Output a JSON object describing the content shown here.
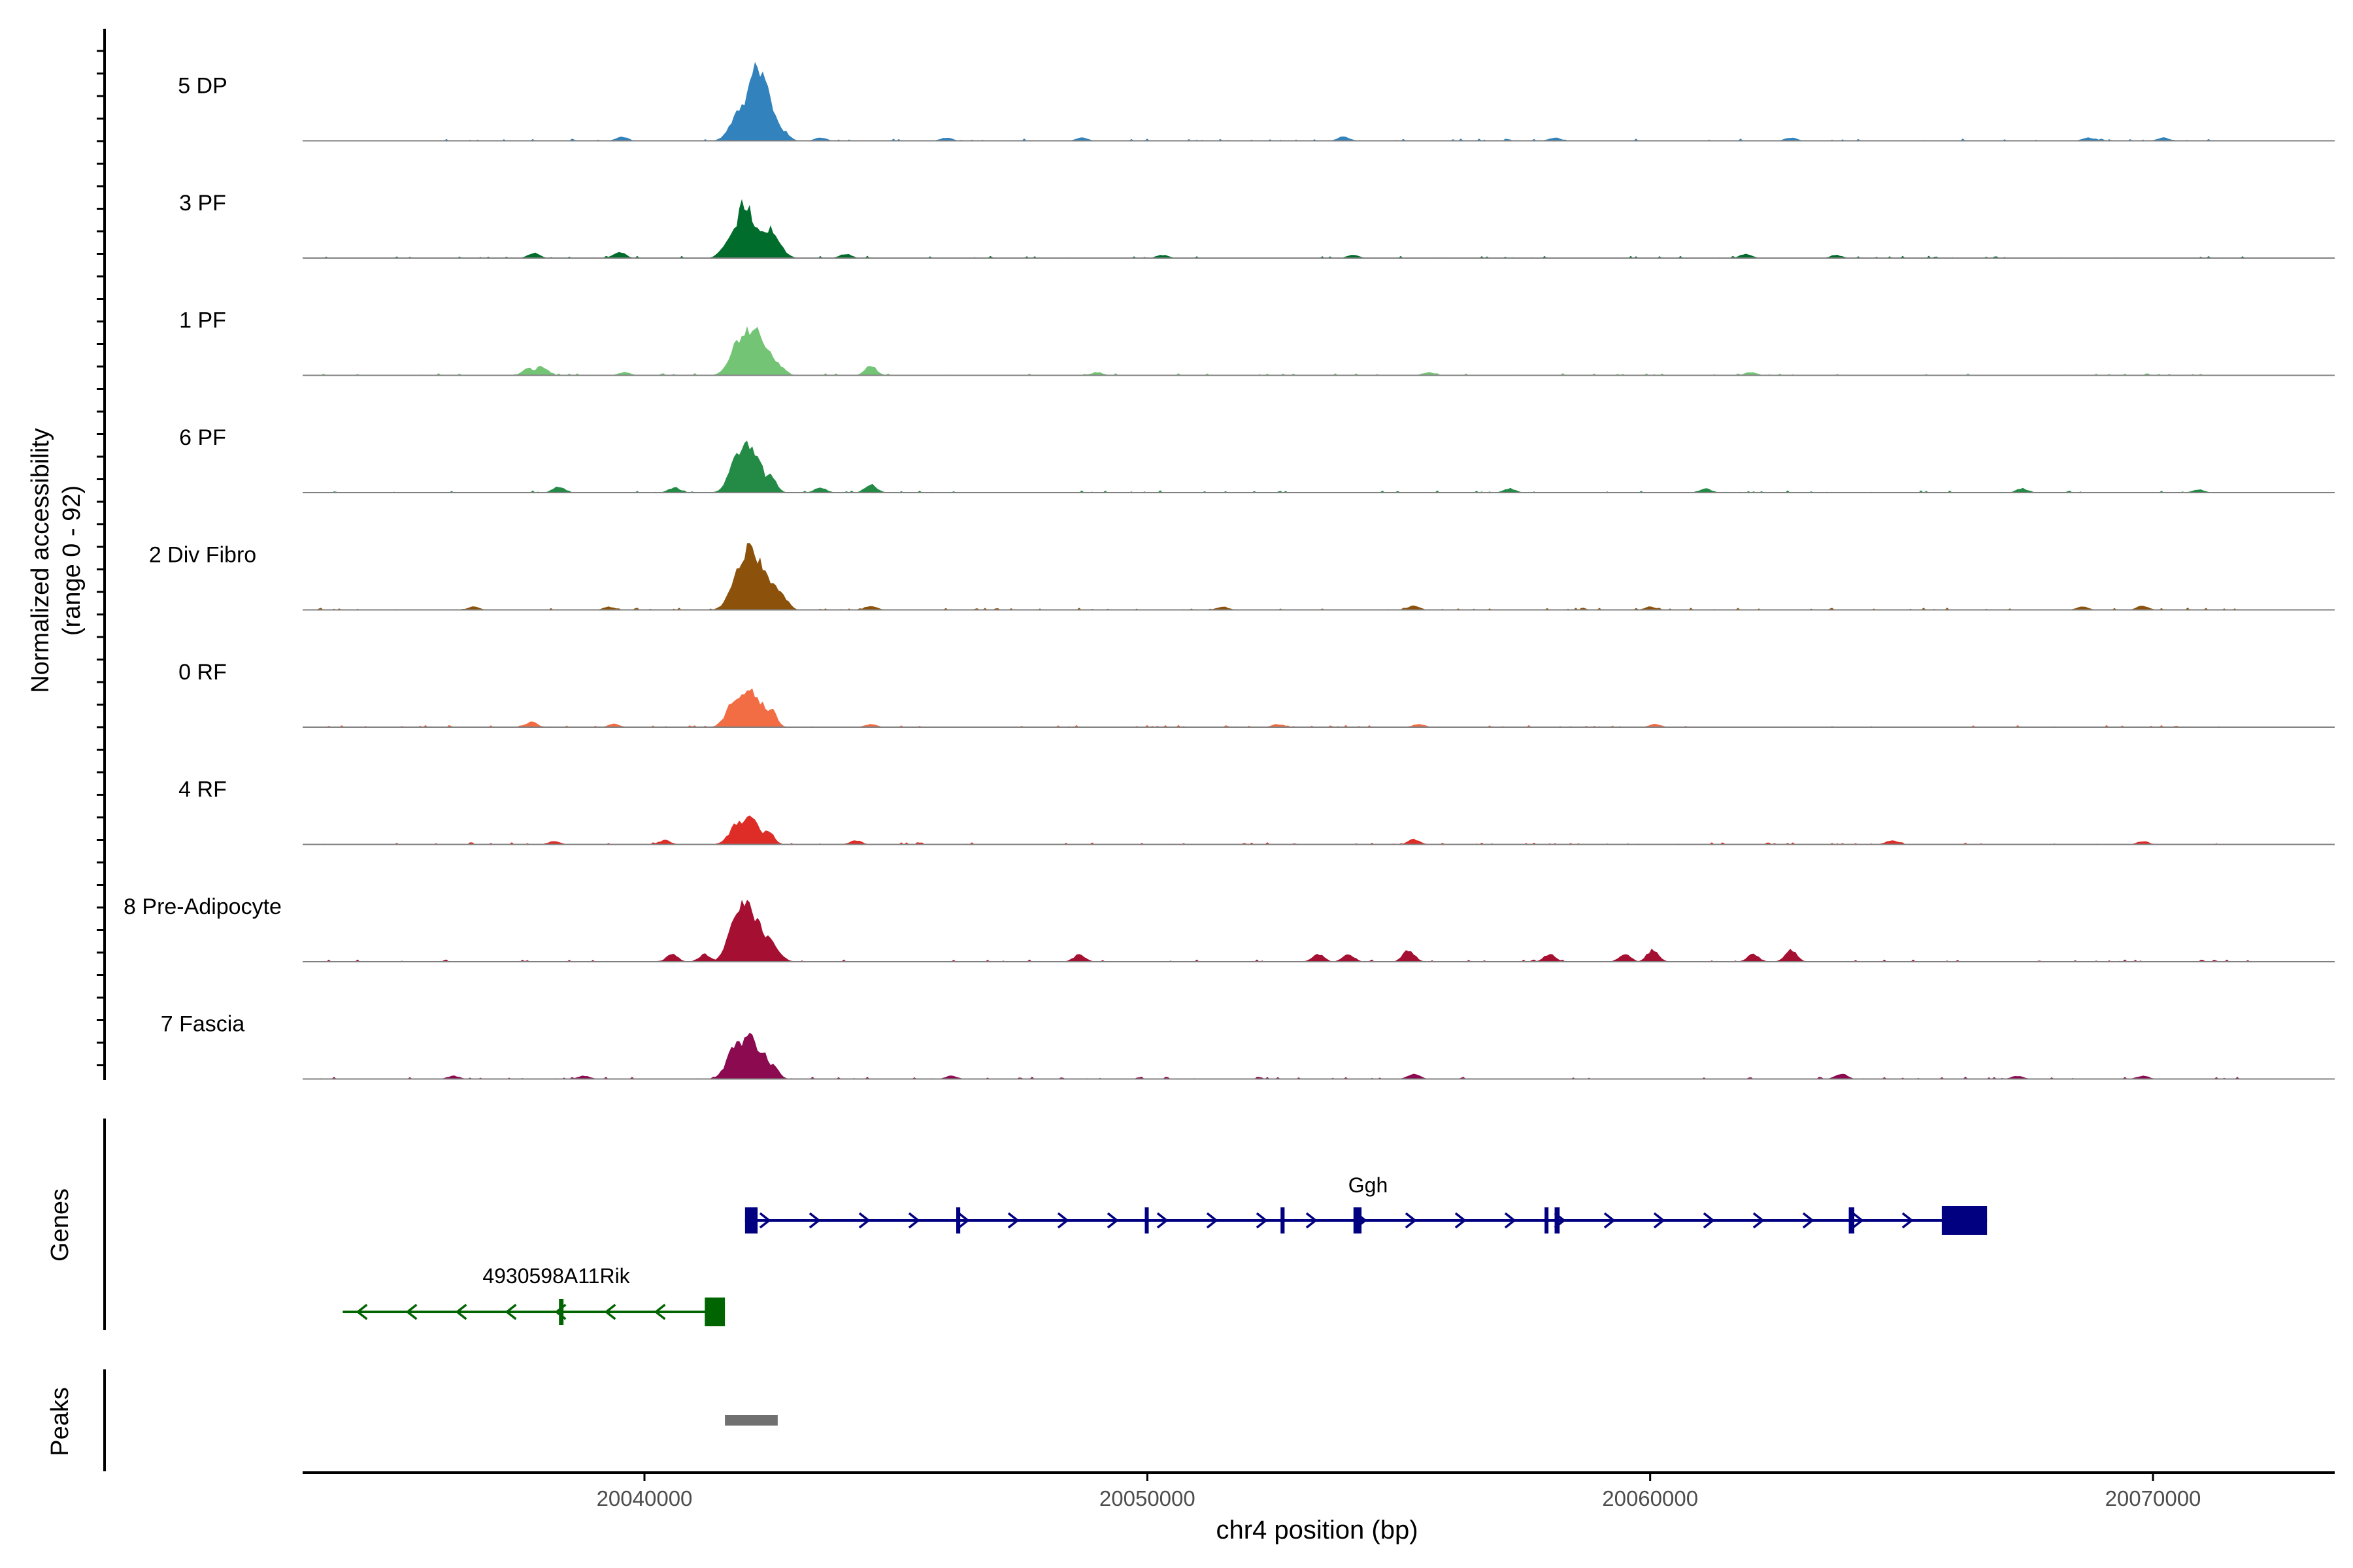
{
  "chart_data": {
    "type": "area",
    "title": "",
    "xlabel": "chr4 position (bp)",
    "ylabel": "Normalized accessibility",
    "ylabel_range": "(range 0 - 92)",
    "ylim": [
      0,
      92
    ],
    "xlim": [
      20033350,
      20073800
    ],
    "x_ticks": [
      20040000,
      20050000,
      20060000,
      20070000
    ],
    "x_tick_labels": [
      "20040000",
      "20050000",
      "20060000",
      "20070000"
    ],
    "tracks": [
      {
        "name": "5 DP",
        "color": "#3182BD",
        "peaks": [
          [
            20039550,
            4
          ],
          [
            20041900,
            28
          ],
          [
            20042050,
            40
          ],
          [
            20042200,
            74
          ],
          [
            20042330,
            58
          ],
          [
            20042450,
            36
          ],
          [
            20042600,
            20
          ],
          [
            20042750,
            10
          ],
          [
            20043500,
            3
          ],
          [
            20046000,
            3
          ],
          [
            20048700,
            3
          ],
          [
            20053900,
            4
          ],
          [
            20058100,
            3
          ],
          [
            20062800,
            3
          ],
          [
            20068700,
            3
          ],
          [
            20070200,
            3
          ]
        ]
      },
      {
        "name": "3 PF",
        "color": "#006D2C",
        "peaks": [
          [
            20037800,
            5
          ],
          [
            20039500,
            6
          ],
          [
            20041800,
            26
          ],
          [
            20042000,
            52
          ],
          [
            20042150,
            34
          ],
          [
            20042350,
            25
          ],
          [
            20042500,
            28
          ],
          [
            20042700,
            10
          ],
          [
            20044000,
            4
          ],
          [
            20050300,
            3
          ],
          [
            20054100,
            3
          ],
          [
            20061900,
            4
          ],
          [
            20063700,
            3
          ]
        ]
      },
      {
        "name": "1 PF",
        "color": "#74C476",
        "peaks": [
          [
            20037700,
            7
          ],
          [
            20037950,
            9
          ],
          [
            20039600,
            3
          ],
          [
            20041900,
            35
          ],
          [
            20042050,
            41
          ],
          [
            20042200,
            48
          ],
          [
            20042450,
            22
          ],
          [
            20042700,
            8
          ],
          [
            20044500,
            9
          ],
          [
            20049000,
            3
          ],
          [
            20055600,
            3
          ],
          [
            20062000,
            3
          ]
        ]
      },
      {
        "name": "6 PF",
        "color": "#238B45",
        "peaks": [
          [
            20038300,
            6
          ],
          [
            20040600,
            5
          ],
          [
            20041900,
            38
          ],
          [
            20042050,
            48
          ],
          [
            20042200,
            32
          ],
          [
            20042500,
            16
          ],
          [
            20043500,
            5
          ],
          [
            20044500,
            8
          ],
          [
            20057200,
            4
          ],
          [
            20061100,
            4
          ],
          [
            20067400,
            4
          ],
          [
            20070900,
            3
          ]
        ]
      },
      {
        "name": "2 Div Fibro",
        "color": "#8C510A",
        "peaks": [
          [
            20036600,
            3
          ],
          [
            20039300,
            3
          ],
          [
            20041900,
            40
          ],
          [
            20042100,
            63
          ],
          [
            20042300,
            44
          ],
          [
            20042550,
            26
          ],
          [
            20042750,
            12
          ],
          [
            20044500,
            4
          ],
          [
            20051500,
            3
          ],
          [
            20055300,
            4
          ],
          [
            20060000,
            3
          ],
          [
            20068600,
            3
          ],
          [
            20069800,
            4
          ]
        ]
      },
      {
        "name": "0 RF",
        "color": "#F26C44",
        "peaks": [
          [
            20037750,
            5
          ],
          [
            20039400,
            3
          ],
          [
            20041850,
            30
          ],
          [
            20042050,
            38
          ],
          [
            20042250,
            25
          ],
          [
            20042500,
            18
          ],
          [
            20044500,
            3
          ],
          [
            20052600,
            3
          ],
          [
            20055400,
            3
          ],
          [
            20060100,
            3
          ]
        ]
      },
      {
        "name": "4 RF",
        "color": "#DE2D26",
        "peaks": [
          [
            20038200,
            3
          ],
          [
            20040400,
            4
          ],
          [
            20041900,
            22
          ],
          [
            20042100,
            28
          ],
          [
            20042450,
            14
          ],
          [
            20044200,
            4
          ],
          [
            20055300,
            5
          ],
          [
            20064800,
            4
          ],
          [
            20069800,
            3
          ]
        ]
      },
      {
        "name": "8 Pre-Adipocyte",
        "color": "#A50F32",
        "peaks": [
          [
            20040550,
            7
          ],
          [
            20041200,
            7
          ],
          [
            20041850,
            40
          ],
          [
            20042000,
            60
          ],
          [
            20042200,
            44
          ],
          [
            20042450,
            24
          ],
          [
            20048650,
            7
          ],
          [
            20053400,
            7
          ],
          [
            20054000,
            7
          ],
          [
            20055200,
            11
          ],
          [
            20058000,
            7
          ],
          [
            20059500,
            7
          ],
          [
            20060050,
            11
          ],
          [
            20062050,
            7
          ],
          [
            20062800,
            11
          ]
        ]
      },
      {
        "name": "7 Fascia",
        "color": "#8B0A50",
        "peaks": [
          [
            20036200,
            3
          ],
          [
            20038800,
            3
          ],
          [
            20041850,
            36
          ],
          [
            20042050,
            44
          ],
          [
            20042300,
            27
          ],
          [
            20042550,
            13
          ],
          [
            20046100,
            3
          ],
          [
            20055300,
            5
          ],
          [
            20063800,
            5
          ],
          [
            20067300,
            3
          ],
          [
            20069800,
            3
          ]
        ]
      }
    ],
    "genes": [
      {
        "name": "Ggh",
        "strand": "+",
        "start": 20042000,
        "end": 20066700,
        "color": "#000080",
        "exons": [
          [
            20042000,
            20042250
          ],
          [
            20046200,
            20046280
          ],
          [
            20049950,
            20050000
          ],
          [
            20052650,
            20052730
          ],
          [
            20054100,
            20054260
          ],
          [
            20057900,
            20057960
          ],
          [
            20058100,
            20058200
          ],
          [
            20063950,
            20064060
          ],
          [
            20065800,
            20066700
          ]
        ]
      },
      {
        "name": "4930598A11Rik",
        "strand": "-",
        "start": 20034000,
        "end": 20041600,
        "color": "#006400",
        "exons": [
          [
            20038300,
            20038390
          ],
          [
            20041200,
            20041600
          ]
        ]
      }
    ],
    "peaks_track": {
      "label": "Peaks",
      "color": "#707070",
      "regions": [
        [
          20041600,
          20042650
        ]
      ]
    },
    "genes_track_label": "Genes"
  }
}
